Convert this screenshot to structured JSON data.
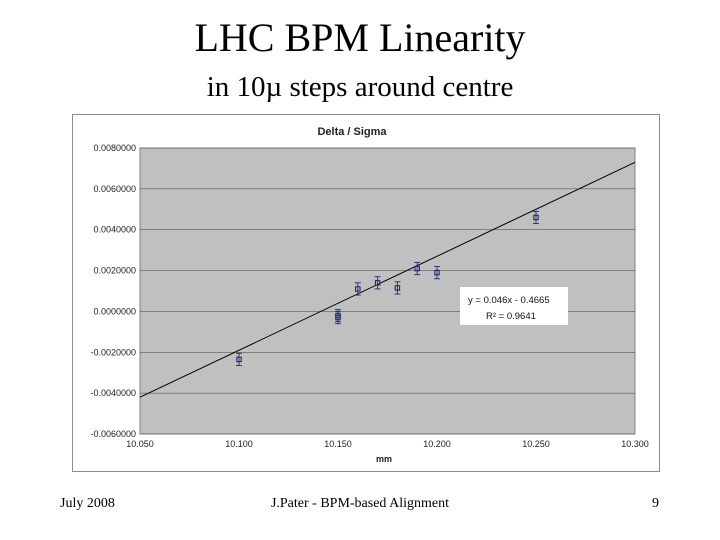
{
  "slide": {
    "title": "LHC BPM Linearity",
    "subtitle": "in 10µ steps around centre",
    "footer_left": "July 2008",
    "footer_center": "J.Pater - BPM-based Alignment",
    "footer_right": "9"
  },
  "chart_data": {
    "type": "scatter",
    "title": "Delta / Sigma",
    "xlabel": "mm",
    "ylabel": "",
    "xlim": [
      10.05,
      10.3
    ],
    "ylim": [
      -0.006,
      0.008
    ],
    "xticks": [
      10.05,
      10.1,
      10.15,
      10.2,
      10.25,
      10.3
    ],
    "xtick_labels": [
      "10.050",
      "10.100",
      "10.150",
      "10.200",
      "10.250",
      "10.300"
    ],
    "yticks": [
      0.008,
      0.006,
      0.004,
      0.002,
      0.0,
      -0.002,
      -0.004,
      -0.006
    ],
    "ytick_labels": [
      "0.0080000",
      "0.0060000",
      "0.0040000",
      "0.0020000",
      "0.0000000",
      "-0.0020000",
      "-0.0040000",
      "-0.0060000"
    ],
    "grid": true,
    "plot_background": "#c0c0c0",
    "point_color": "#1f2a6b",
    "trendline_color": "#000000",
    "points": [
      {
        "x": 10.1,
        "y": -0.00235,
        "err": 0.0003
      },
      {
        "x": 10.15,
        "y": -0.0002,
        "err": 0.0003
      },
      {
        "x": 10.15,
        "y": -0.0003,
        "err": 0.0003
      },
      {
        "x": 10.16,
        "y": 0.0011,
        "err": 0.0003
      },
      {
        "x": 10.17,
        "y": 0.0014,
        "err": 0.0003
      },
      {
        "x": 10.18,
        "y": 0.00115,
        "err": 0.0003
      },
      {
        "x": 10.19,
        "y": 0.0021,
        "err": 0.0003
      },
      {
        "x": 10.2,
        "y": 0.0019,
        "err": 0.0003
      },
      {
        "x": 10.25,
        "y": 0.0046,
        "err": 0.0003
      }
    ],
    "trendline": {
      "slope": 0.046,
      "intercept": -0.4665
    },
    "equation_text": "y = 0.046x - 0.4665",
    "r2_text": "R² = 0.9641"
  }
}
